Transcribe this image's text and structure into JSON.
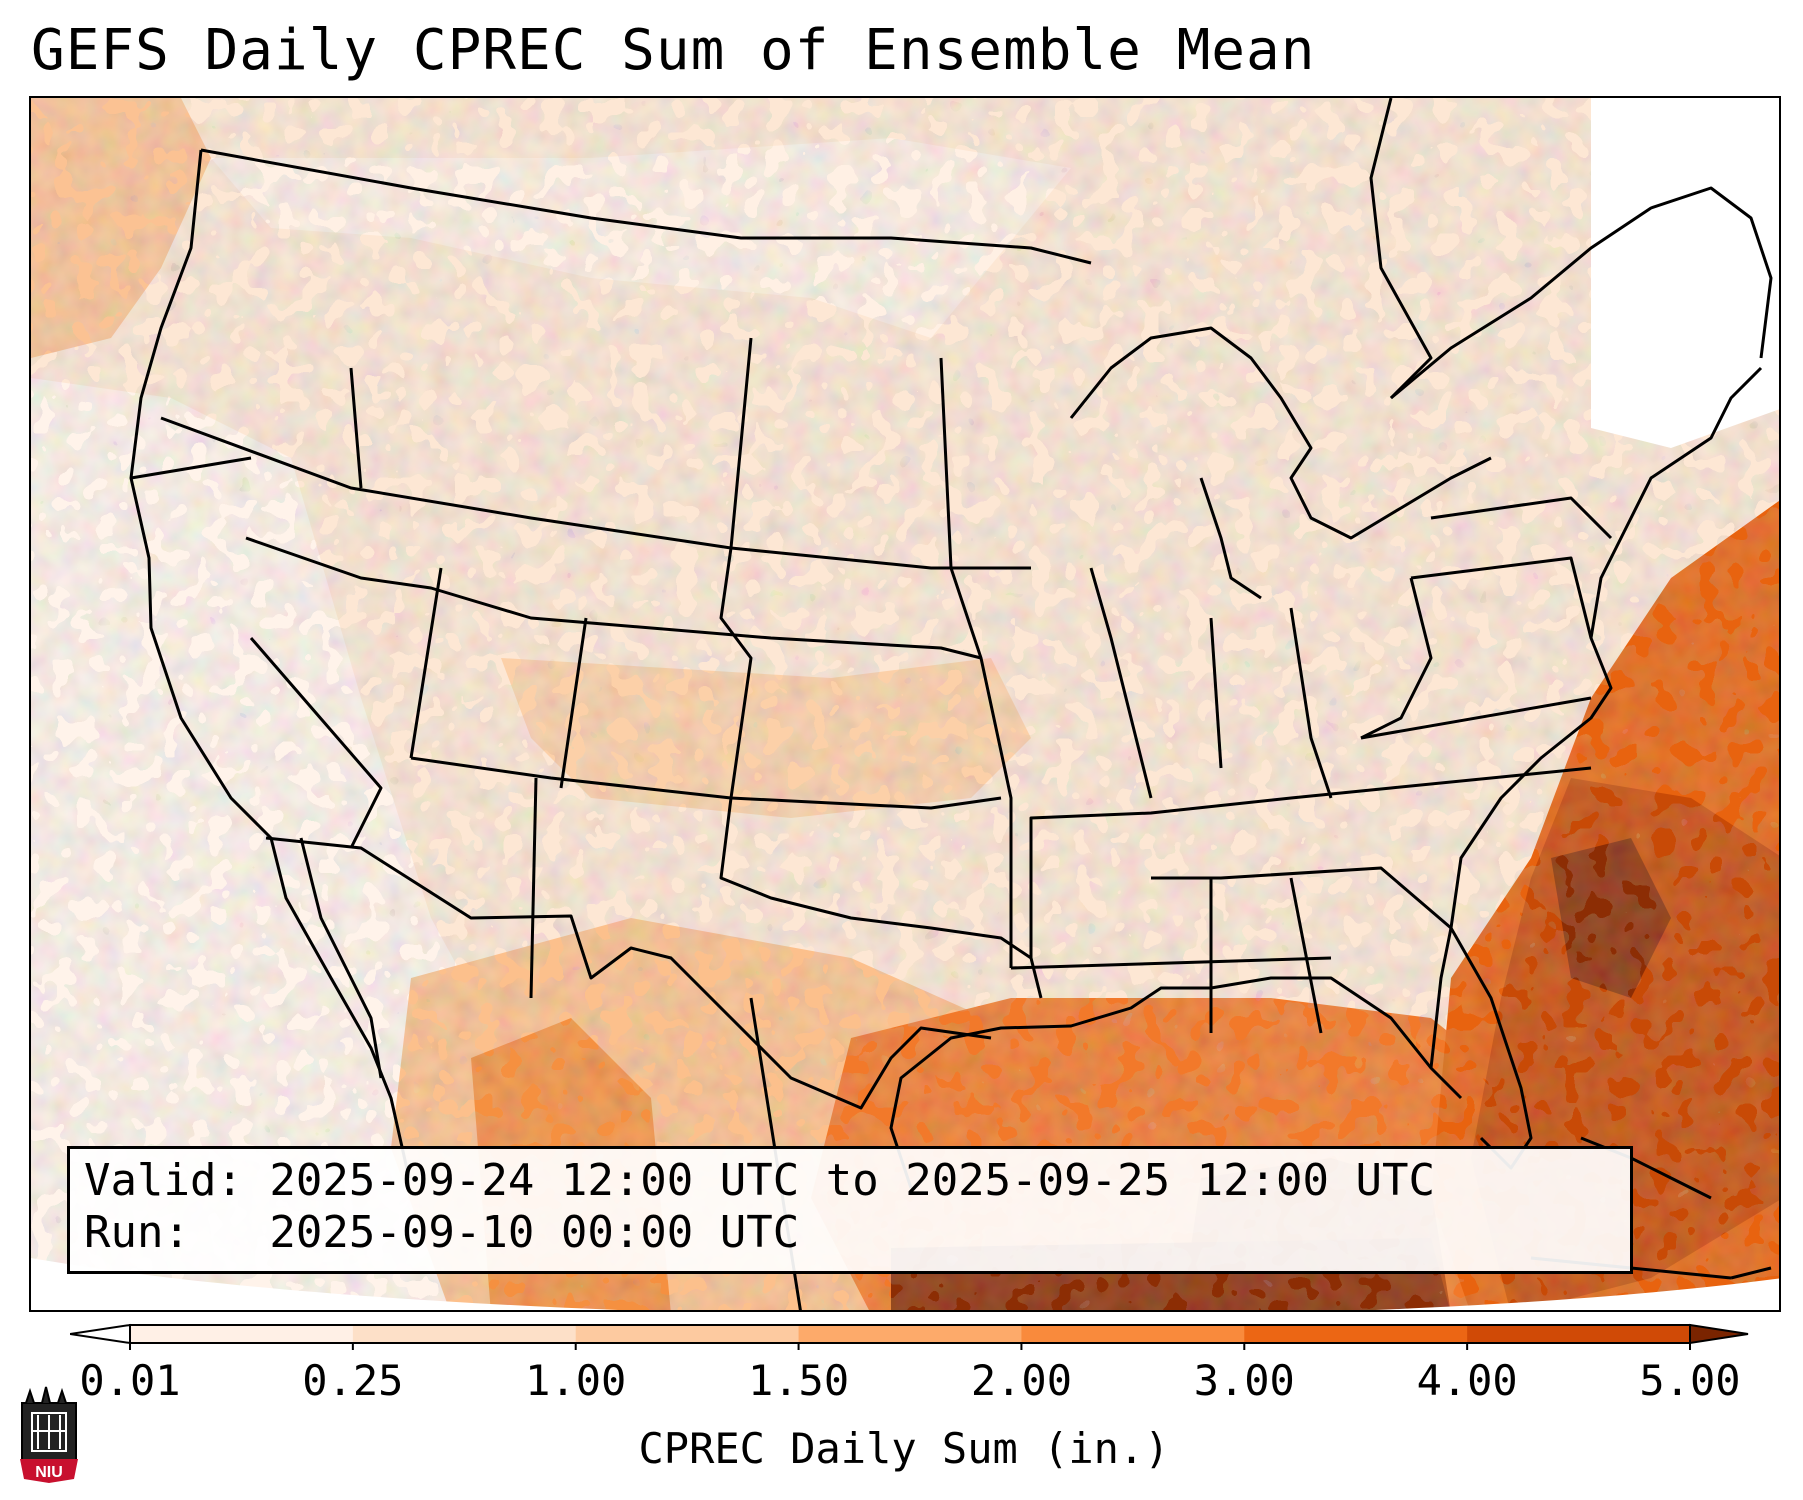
{
  "title": "GEFS Daily CPREC Sum of Ensemble Mean",
  "info": {
    "valid_line": "Valid: 2025-09-24 12:00 UTC to 2025-09-25 12:00 UTC",
    "run_line": "Run:   2025-09-10 00:00 UTC"
  },
  "colorbar": {
    "label": "CPREC Daily Sum (in.)",
    "ticks": [
      "0.01",
      "0.25",
      "1.00",
      "1.50",
      "2.00",
      "3.00",
      "4.00",
      "5.00"
    ],
    "colors": [
      "#fff0e6",
      "#fde0c8",
      "#fdcaa0",
      "#fdaa6a",
      "#f98a3c",
      "#ec6614",
      "#d04a06",
      "#8c2d04"
    ],
    "under_color": "#ffffff",
    "over_color": "#7a2400"
  },
  "logo": {
    "text": "NIU",
    "color": "#c8102e"
  },
  "map_colors": {
    "very_light": "#fff3ea",
    "light": "#fde5d0",
    "light_mid": "#fcd0a8",
    "mid": "#fbb27a",
    "orange": "#f78c3e",
    "dark_orange": "#e8630f",
    "deep": "#c84a06",
    "darkest": "#8c2d04"
  }
}
